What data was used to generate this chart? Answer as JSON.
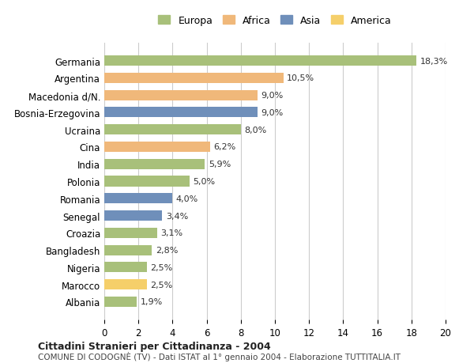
{
  "countries": [
    "Albania",
    "Marocco",
    "Nigeria",
    "Bangladesh",
    "Croazia",
    "Senegal",
    "Romania",
    "Polonia",
    "India",
    "Cina",
    "Ucraina",
    "Bosnia-Erzegovina",
    "Macedonia d/N.",
    "Argentina",
    "Germania"
  ],
  "values": [
    18.3,
    10.5,
    9.0,
    9.0,
    8.0,
    6.2,
    5.9,
    5.0,
    4.0,
    3.4,
    3.1,
    2.8,
    2.5,
    2.5,
    1.9
  ],
  "labels": [
    "18,3%",
    "10,5%",
    "9,0%",
    "9,0%",
    "8,0%",
    "6,2%",
    "5,9%",
    "5,0%",
    "4,0%",
    "3,4%",
    "3,1%",
    "2,8%",
    "2,5%",
    "2,5%",
    "1,9%"
  ],
  "continents": [
    "Europa",
    "Africa",
    "Africa",
    "Asia",
    "Europa",
    "Africa",
    "Europa",
    "Europa",
    "Asia",
    "Asia",
    "Europa",
    "Europa",
    "Europa",
    "America",
    "Europa"
  ],
  "continent_colors": {
    "Europa": "#a8c07a",
    "Africa": "#f0b87a",
    "Asia": "#6f8fba",
    "America": "#f5cf6a"
  },
  "legend_order": [
    "Europa",
    "Africa",
    "Asia",
    "America"
  ],
  "xlim": [
    0,
    20
  ],
  "xticks": [
    0,
    2,
    4,
    6,
    8,
    10,
    12,
    14,
    16,
    18,
    20
  ],
  "title": "Cittadini Stranieri per Cittadinanza - 2004",
  "subtitle": "COMUNE DI CODOGNÈ (TV) - Dati ISTAT al 1° gennaio 2004 - Elaborazione TUTTITALIA.IT",
  "bg_color": "#ffffff",
  "grid_color": "#cccccc"
}
